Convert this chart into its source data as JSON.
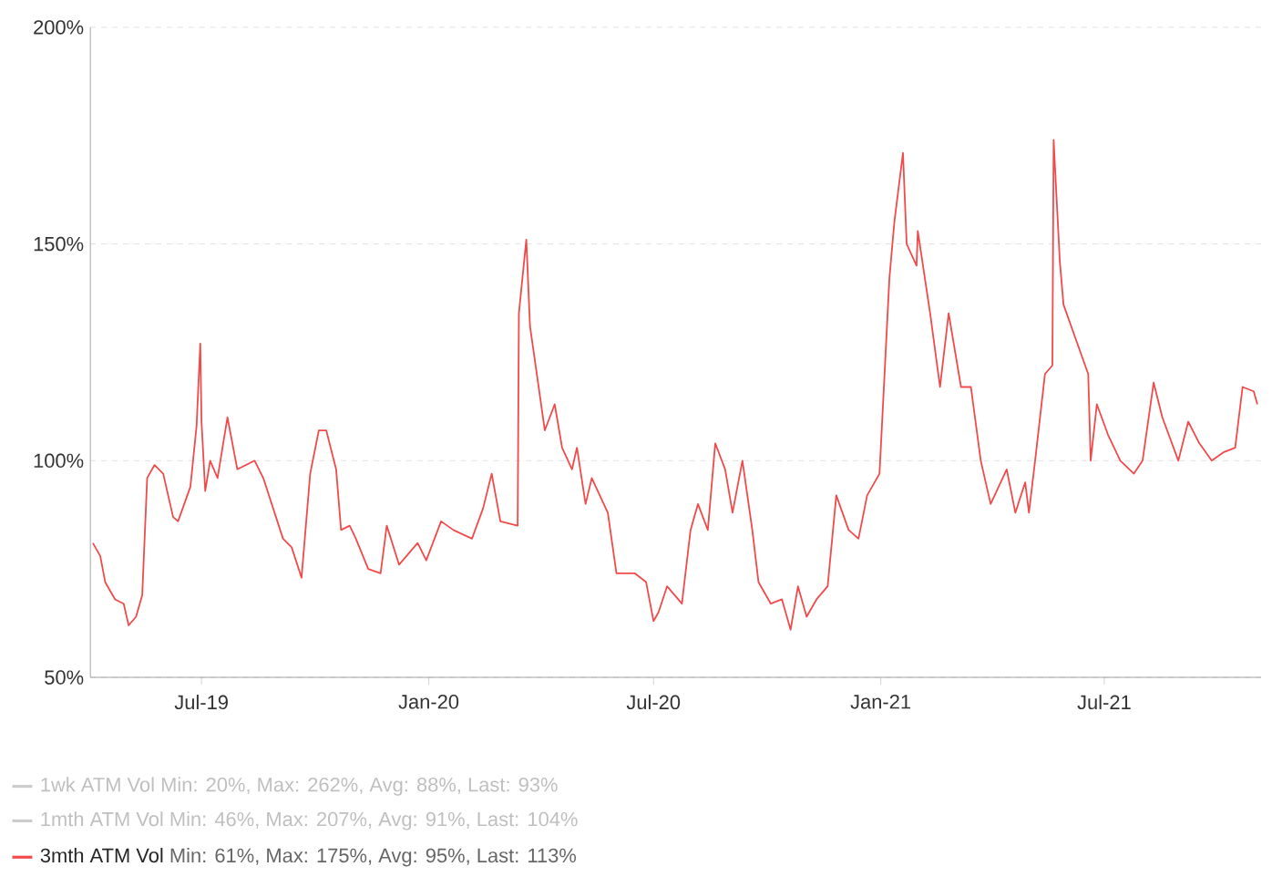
{
  "chart_data": {
    "type": "line",
    "xlim": [
      "2019-04-02",
      "2021-11-05"
    ],
    "xticks": [
      {
        "value": "2019-07-01",
        "label": "Jul-19"
      },
      {
        "value": "2020-01-01",
        "label": "Jan-20"
      },
      {
        "value": "2020-07-01",
        "label": "Jul-20"
      },
      {
        "value": "2021-01-01",
        "label": "Jan-21"
      },
      {
        "value": "2021-07-01",
        "label": "Jul-21"
      }
    ],
    "ylim": [
      50,
      200
    ],
    "yticks": [
      {
        "value": 50,
        "label": "50%"
      },
      {
        "value": 100,
        "label": "100%"
      },
      {
        "value": 150,
        "label": "150%"
      },
      {
        "value": 200,
        "label": "200%"
      }
    ],
    "grid": "y",
    "legend": "bottom left",
    "marker": "none",
    "line_style": "solid",
    "series": [
      {
        "name": "3mth ATM Vol",
        "color": "#f24a4a",
        "x": [
          "2019-04-04",
          "2019-04-10",
          "2019-04-14",
          "2019-04-22",
          "2019-04-29",
          "2019-05-03",
          "2019-05-09",
          "2019-05-14",
          "2019-05-18",
          "2019-05-24",
          "2019-05-31",
          "2019-06-08",
          "2019-06-12",
          "2019-06-22",
          "2019-06-27",
          "2019-06-30",
          "2019-07-01",
          "2019-07-04",
          "2019-07-08",
          "2019-07-14",
          "2019-07-22",
          "2019-07-30",
          "2019-08-13",
          "2019-08-20",
          "2019-09-05",
          "2019-09-12",
          "2019-09-20",
          "2019-09-27",
          "2019-10-04",
          "2019-10-10",
          "2019-10-18",
          "2019-10-22",
          "2019-10-29",
          "2019-11-03",
          "2019-11-13",
          "2019-11-23",
          "2019-11-28",
          "2019-12-08",
          "2019-12-23",
          "2019-12-30",
          "2020-01-11",
          "2020-01-21",
          "2020-02-05",
          "2020-02-14",
          "2020-02-21",
          "2020-02-28",
          "2020-03-13",
          "2020-03-14",
          "2020-03-20",
          "2020-03-23",
          "2020-04-04",
          "2020-04-12",
          "2020-04-18",
          "2020-04-26",
          "2020-04-30",
          "2020-05-07",
          "2020-05-12",
          "2020-05-25",
          "2020-06-01",
          "2020-06-16",
          "2020-06-25",
          "2020-07-01",
          "2020-07-05",
          "2020-07-12",
          "2020-07-24",
          "2020-07-31",
          "2020-08-06",
          "2020-08-14",
          "2020-08-20",
          "2020-08-28",
          "2020-09-03",
          "2020-09-11",
          "2020-09-19",
          "2020-09-24",
          "2020-10-04",
          "2020-10-13",
          "2020-10-20",
          "2020-10-26",
          "2020-11-02",
          "2020-11-10",
          "2020-11-19",
          "2020-11-26",
          "2020-12-06",
          "2020-12-14",
          "2020-12-21",
          "2020-12-31",
          "2021-01-08",
          "2021-01-12",
          "2021-01-19",
          "2021-01-22",
          "2021-01-30",
          "2021-01-31",
          "2021-02-10",
          "2021-02-18",
          "2021-02-25",
          "2021-03-07",
          "2021-03-15",
          "2021-03-23",
          "2021-03-31",
          "2021-04-13",
          "2021-04-20",
          "2021-04-28",
          "2021-05-01",
          "2021-05-06",
          "2021-05-14",
          "2021-05-20",
          "2021-05-21",
          "2021-05-26",
          "2021-05-29",
          "2021-06-08",
          "2021-06-18",
          "2021-06-20",
          "2021-06-25",
          "2021-07-04",
          "2021-07-14",
          "2021-07-25",
          "2021-08-01",
          "2021-08-10",
          "2021-08-17",
          "2021-08-30",
          "2021-09-07",
          "2021-09-16",
          "2021-09-26",
          "2021-10-06",
          "2021-10-15",
          "2021-10-21",
          "2021-10-30",
          "2021-11-02"
        ],
        "values": [
          81,
          78,
          72,
          68,
          67,
          62,
          64,
          69,
          96,
          99,
          97,
          87,
          86,
          94,
          108,
          127,
          109,
          93,
          100,
          96,
          110,
          98,
          100,
          96,
          82,
          80,
          73,
          97,
          107,
          107,
          98,
          84,
          85,
          82,
          75,
          74,
          85,
          76,
          81,
          77,
          86,
          84,
          82,
          89,
          97,
          86,
          85,
          134,
          151,
          131,
          107,
          113,
          103,
          98,
          103,
          90,
          96,
          88,
          74,
          74,
          72,
          63,
          65,
          71,
          67,
          84,
          90,
          84,
          104,
          98,
          88,
          100,
          84,
          72,
          67,
          68,
          61,
          71,
          64,
          68,
          71,
          92,
          84,
          82,
          92,
          97,
          142,
          155,
          171,
          150,
          145,
          153,
          134,
          117,
          134,
          117,
          117,
          100,
          90,
          98,
          88,
          95,
          88,
          100,
          120,
          122,
          174,
          146,
          136,
          128,
          120,
          100,
          113,
          106,
          100,
          97,
          100,
          118,
          110,
          100,
          109,
          104,
          100,
          102,
          103,
          117,
          116,
          113
        ]
      }
    ],
    "annotations": [
      "1wk ATM Vol Min: 20%, Max: 262%, Avg: 88%, Last: 93%",
      "1mth ATM Vol Min: 46%, Max: 207%, Avg: 91%, Last: 104%",
      "Min: 61%, Max: 175%, Avg: 95%, Last: 113%"
    ]
  }
}
